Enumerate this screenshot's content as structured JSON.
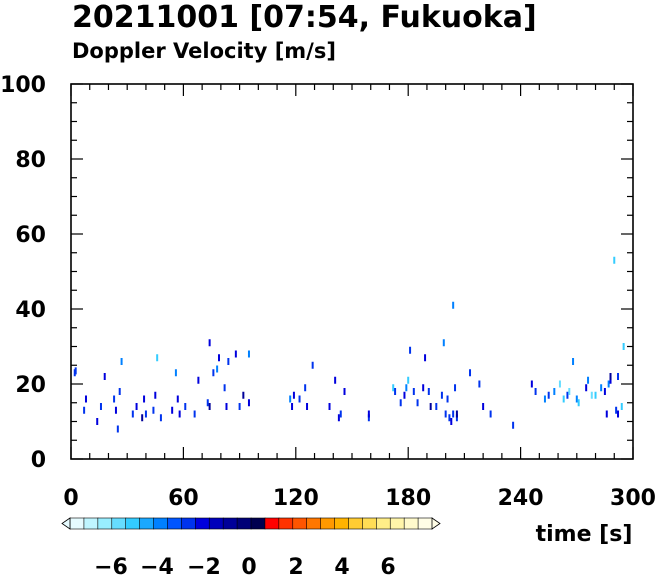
{
  "chart_data": {
    "type": "scatter",
    "title": "20211001 [07:54, Fukuoka]",
    "subtitle": "Doppler Velocity [m/s]",
    "xlabel": "time [s]",
    "ylabel": "",
    "xlim": [
      0,
      300
    ],
    "ylim": [
      0,
      100
    ],
    "x_ticks": [
      "0",
      "60",
      "120",
      "180",
      "240",
      "300"
    ],
    "y_ticks": [
      "0",
      "20",
      "40",
      "60",
      "80",
      "100"
    ],
    "colorbar": {
      "ticks": [
        "−6",
        "−4",
        "−2",
        "0",
        "2",
        "4",
        "6"
      ],
      "range": [
        -8,
        8
      ],
      "colors": [
        "#e6fbff",
        "#bff5ff",
        "#99eeff",
        "#66ddff",
        "#33ccff",
        "#1aa8ff",
        "#0080ff",
        "#0055ff",
        "#0033ee",
        "#0000dd",
        "#0000bb",
        "#000099",
        "#000077",
        "#000050",
        "#ff0000",
        "#ff3300",
        "#ff5500",
        "#ff7700",
        "#ff9900",
        "#ffb300",
        "#ffcc33",
        "#ffdd55",
        "#ffee88",
        "#fff5aa",
        "#fffacc",
        "#fffde6"
      ]
    },
    "points": [
      [
        2,
        23,
        -3
      ],
      [
        2.5,
        23.5,
        -2.5
      ],
      [
        7,
        13,
        -3
      ],
      [
        8,
        16,
        -2
      ],
      [
        14,
        10,
        -2
      ],
      [
        16,
        14,
        -3
      ],
      [
        18,
        22,
        -2
      ],
      [
        23,
        16,
        -3
      ],
      [
        24,
        13,
        -2
      ],
      [
        25,
        8,
        -2.5
      ],
      [
        26,
        18,
        -3
      ],
      [
        27,
        26,
        -4
      ],
      [
        33,
        12,
        -2.5
      ],
      [
        35,
        14,
        -2
      ],
      [
        38,
        11,
        -1
      ],
      [
        39,
        16,
        -2
      ],
      [
        40,
        12,
        -3
      ],
      [
        44,
        13,
        -3
      ],
      [
        45,
        17,
        -2
      ],
      [
        46,
        27,
        -5
      ],
      [
        48,
        11,
        -3
      ],
      [
        54,
        13,
        -2
      ],
      [
        56,
        23,
        -4
      ],
      [
        57,
        16,
        -2
      ],
      [
        58,
        12,
        -2
      ],
      [
        61,
        14,
        -3
      ],
      [
        66,
        12,
        -3
      ],
      [
        68,
        21,
        -2
      ],
      [
        73,
        15,
        -2.5
      ],
      [
        74,
        14,
        -1
      ],
      [
        74,
        31,
        -2
      ],
      [
        76,
        23,
        -3
      ],
      [
        78,
        24,
        -4
      ],
      [
        79,
        27,
        -2
      ],
      [
        82,
        19,
        -3
      ],
      [
        83,
        14,
        -2
      ],
      [
        84,
        26,
        -3
      ],
      [
        88,
        28,
        -2
      ],
      [
        90,
        14,
        -3
      ],
      [
        92,
        17,
        -1
      ],
      [
        95,
        15,
        -2
      ],
      [
        95,
        28,
        -4
      ],
      [
        117,
        16,
        -4
      ],
      [
        118,
        14,
        -2
      ],
      [
        119,
        17,
        -2
      ],
      [
        122,
        16,
        -3
      ],
      [
        125,
        19,
        -3
      ],
      [
        126,
        14,
        -2
      ],
      [
        129,
        25,
        -3
      ],
      [
        138,
        14,
        -2
      ],
      [
        141,
        21,
        -2
      ],
      [
        143,
        11,
        -2
      ],
      [
        144,
        12,
        -3
      ],
      [
        146,
        18,
        -2
      ],
      [
        159,
        11,
        -3
      ],
      [
        159,
        12,
        -2
      ],
      [
        172,
        19,
        -5
      ],
      [
        173,
        18,
        -3
      ],
      [
        176,
        15,
        -3
      ],
      [
        178,
        17,
        -2
      ],
      [
        179,
        19,
        -4
      ],
      [
        180,
        21,
        -5
      ],
      [
        181,
        29,
        -3
      ],
      [
        183,
        18,
        -3
      ],
      [
        185,
        15,
        -3
      ],
      [
        188,
        19,
        -2
      ],
      [
        189,
        27,
        -2
      ],
      [
        191,
        18,
        -3
      ],
      [
        192,
        14,
        -1
      ],
      [
        195,
        14,
        -3
      ],
      [
        198,
        17,
        -3
      ],
      [
        199,
        31,
        -4
      ],
      [
        200,
        12,
        -3
      ],
      [
        201,
        16,
        -3
      ],
      [
        202,
        11,
        -3
      ],
      [
        203,
        10,
        -2
      ],
      [
        204,
        12,
        -3
      ],
      [
        204,
        41,
        -4
      ],
      [
        205,
        19,
        -3
      ],
      [
        206,
        11,
        -3
      ],
      [
        206,
        12,
        -1
      ],
      [
        213,
        23,
        -3
      ],
      [
        218,
        20,
        -3
      ],
      [
        220,
        14,
        -2
      ],
      [
        224,
        12,
        -3
      ],
      [
        236,
        9,
        -2.5
      ],
      [
        246,
        20,
        -2
      ],
      [
        248,
        18,
        -3
      ],
      [
        253,
        16,
        -4
      ],
      [
        255,
        17,
        -3
      ],
      [
        258,
        18,
        -4
      ],
      [
        261,
        20,
        -6
      ],
      [
        263,
        16,
        -5
      ],
      [
        265,
        17,
        -3
      ],
      [
        266,
        18,
        -6
      ],
      [
        268,
        26,
        -4
      ],
      [
        270,
        16,
        -4
      ],
      [
        271,
        15,
        -5
      ],
      [
        275,
        19,
        -2
      ],
      [
        276,
        21,
        -4
      ],
      [
        278,
        17,
        -6
      ],
      [
        280,
        17,
        -5
      ],
      [
        283,
        19,
        -4
      ],
      [
        285,
        18,
        -2
      ],
      [
        286,
        12,
        -2
      ],
      [
        287,
        20,
        -4
      ],
      [
        288,
        21,
        -2
      ],
      [
        288,
        22,
        -1
      ],
      [
        290,
        53,
        -5
      ],
      [
        291,
        13,
        -3
      ],
      [
        292,
        12,
        -2
      ],
      [
        292,
        22,
        -3
      ],
      [
        295,
        30,
        -5
      ],
      [
        294,
        14,
        -5
      ]
    ]
  }
}
